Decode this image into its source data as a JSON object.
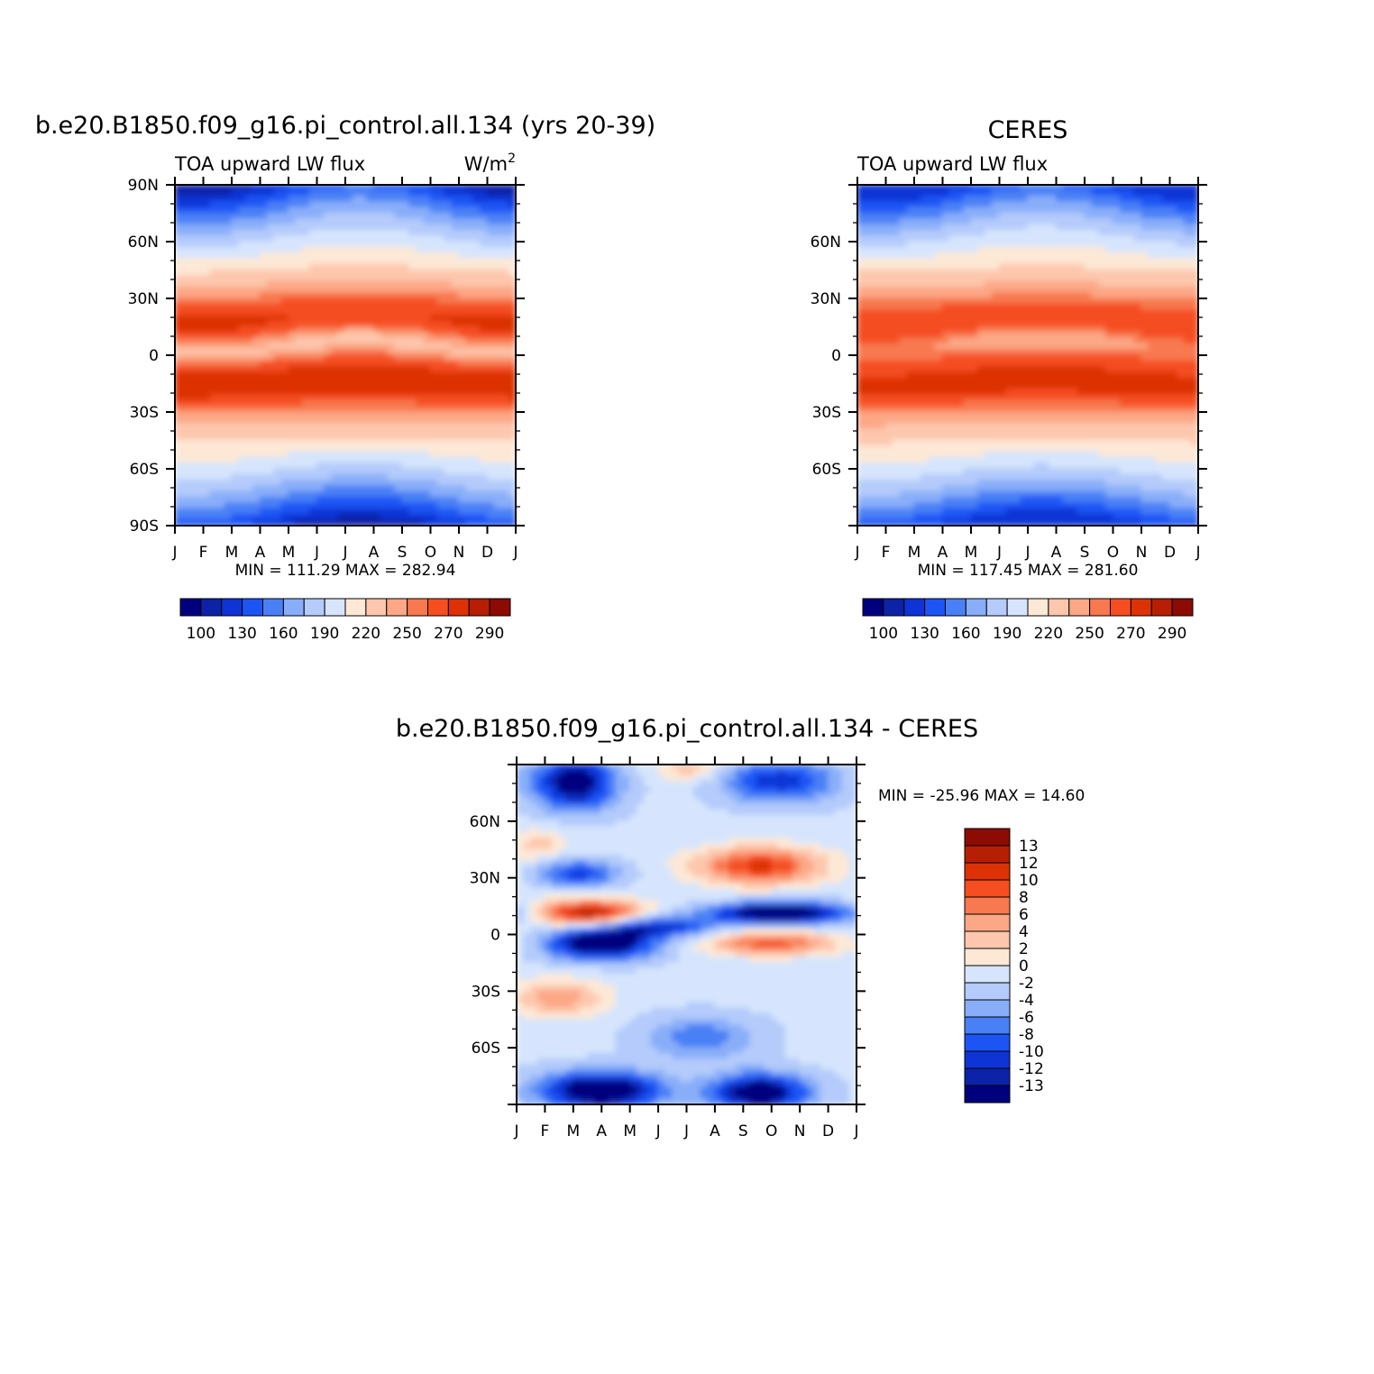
{
  "colors": {
    "model_levels": [
      "#00007f",
      "#0c23a8",
      "#0f34d6",
      "#1d55f5",
      "#4a80f6",
      "#89aef9",
      "#b4cbfb",
      "#d6e5fd",
      "#fde8d6",
      "#fdc7ad",
      "#fca786",
      "#f8794f",
      "#f54e20",
      "#dd3205",
      "#b61f04",
      "#8c0b03"
    ],
    "diff_levels": [
      "#00007f",
      "#0c23a8",
      "#0f34d6",
      "#1d55f5",
      "#4a80f6",
      "#89aef9",
      "#b4cbfb",
      "#d6e5fd",
      "#fde8d6",
      "#fdc7ad",
      "#fca786",
      "#f8794f",
      "#f54e20",
      "#dd3205",
      "#b61f04",
      "#8c0b03"
    ]
  },
  "chart_data": [
    {
      "type": "heatmap",
      "panel": "model",
      "title": "b.e20.B1850.f09_g16.pi_control.all.134 (yrs 20-39)",
      "left_label": "TOA upward LW flux",
      "units_base": "W/m",
      "units_exp": "2",
      "months": [
        "J",
        "F",
        "M",
        "A",
        "M",
        "J",
        "J",
        "A",
        "S",
        "O",
        "N",
        "D",
        "J"
      ],
      "lat_labels": [
        "90N",
        "60N",
        "30N",
        "0",
        "30S",
        "60S",
        "90S"
      ],
      "lat_ticks": [
        90,
        60,
        30,
        0,
        -30,
        -60,
        -90
      ],
      "ylim": [
        -90,
        90
      ],
      "min_text": "MIN = 111.29 MAX = 282.94",
      "min": 111.29,
      "max": 282.94,
      "colorbar_labels": [
        "100",
        "130",
        "160",
        "190",
        "220",
        "250",
        "270",
        "290"
      ]
    },
    {
      "type": "heatmap",
      "panel": "obs",
      "title": "CERES",
      "left_label": "TOA upward LW flux",
      "months": [
        "J",
        "F",
        "M",
        "A",
        "M",
        "J",
        "J",
        "A",
        "S",
        "O",
        "N",
        "D",
        "J"
      ],
      "lat_labels": [
        "60N",
        "30N",
        "0",
        "30S",
        "60S"
      ],
      "lat_ticks": [
        60,
        30,
        0,
        -30,
        -60
      ],
      "ylim": [
        -90,
        90
      ],
      "min_text": "MIN = 117.45 MAX = 281.60",
      "min": 117.45,
      "max": 281.6,
      "colorbar_labels": [
        "100",
        "130",
        "160",
        "190",
        "220",
        "250",
        "270",
        "290"
      ]
    },
    {
      "type": "heatmap",
      "panel": "diff",
      "title": "b.e20.B1850.f09_g16.pi_control.all.134 - CERES",
      "months": [
        "J",
        "F",
        "M",
        "A",
        "M",
        "J",
        "J",
        "A",
        "S",
        "O",
        "N",
        "D",
        "J"
      ],
      "lat_labels": [
        "60N",
        "30N",
        "0",
        "30S",
        "60S"
      ],
      "lat_ticks": [
        60,
        30,
        0,
        -30,
        -60
      ],
      "ylim": [
        -90,
        90
      ],
      "min_text": "MIN = -25.96 MAX =  14.60",
      "min": -25.96,
      "max": 14.6,
      "colorbar_labels": [
        "13",
        "12",
        "10",
        "8",
        "6",
        "4",
        "2",
        "0",
        "-2",
        "-4",
        "-6",
        "-8",
        "-10",
        "-12",
        "-13"
      ]
    }
  ]
}
